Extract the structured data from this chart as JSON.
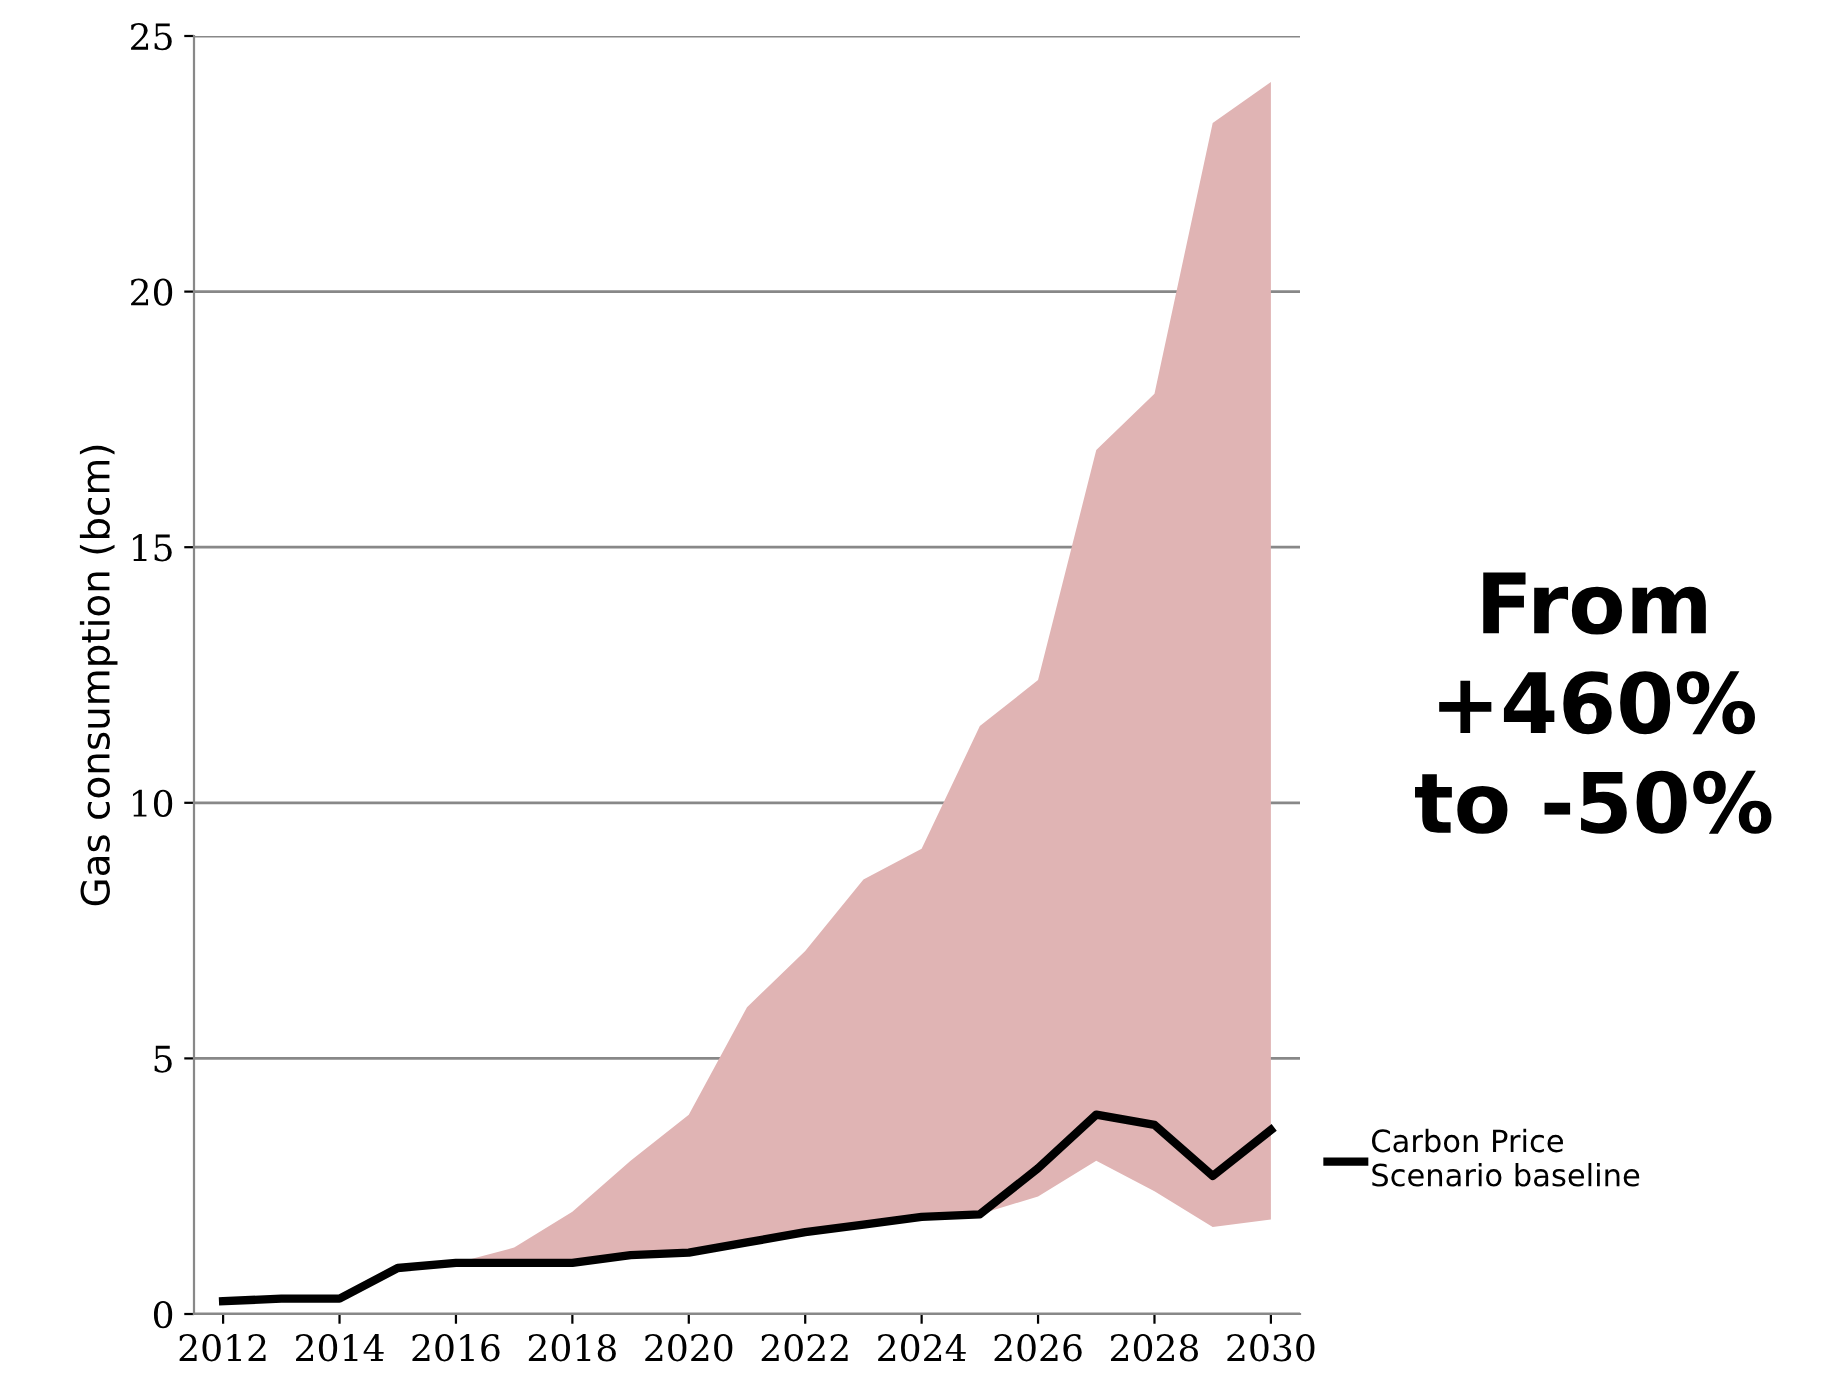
{
  "chart_data": {
    "type": "line",
    "ylabel": "Gas consumption (bcm)",
    "categories": [
      "2012",
      null,
      "2014",
      null,
      "2016",
      null,
      "2018",
      null,
      "2020",
      null,
      "2022",
      null,
      "2024",
      null,
      "2026",
      null,
      "2028",
      null,
      "2030"
    ],
    "series": [
      {
        "name": "Carbon Price\nScenario baseline",
        "color": "#000000",
        "values": [
          0.25,
          0.3,
          0.3,
          0.9,
          1.0,
          1.0,
          1.0,
          1.15,
          1.2,
          1.4,
          1.6,
          1.75,
          1.9,
          1.95,
          2.85,
          3.9,
          3.7,
          2.7,
          3.6
        ],
        "lower": [
          0.25,
          0.3,
          0.3,
          0.9,
          1.0,
          1.0,
          1.0,
          1.15,
          1.2,
          1.4,
          1.6,
          1.75,
          1.9,
          1.95,
          2.3,
          3.0,
          2.4,
          1.7,
          1.85
        ],
        "upper": [
          0.25,
          0.3,
          0.3,
          0.9,
          1.0,
          1.3,
          2.0,
          3.0,
          3.9,
          6.0,
          7.1,
          8.5,
          9.1,
          11.5,
          12.4,
          16.9,
          18.0,
          23.3,
          24.1
        ]
      }
    ],
    "ylim": [
      0,
      25
    ],
    "yticks": [
      0,
      5,
      10,
      15,
      20,
      25
    ],
    "grid": "y",
    "legend": "right",
    "marker": "none",
    "line_style": "solid",
    "annotations": [
      "From\n+460%\nto -50%"
    ]
  }
}
